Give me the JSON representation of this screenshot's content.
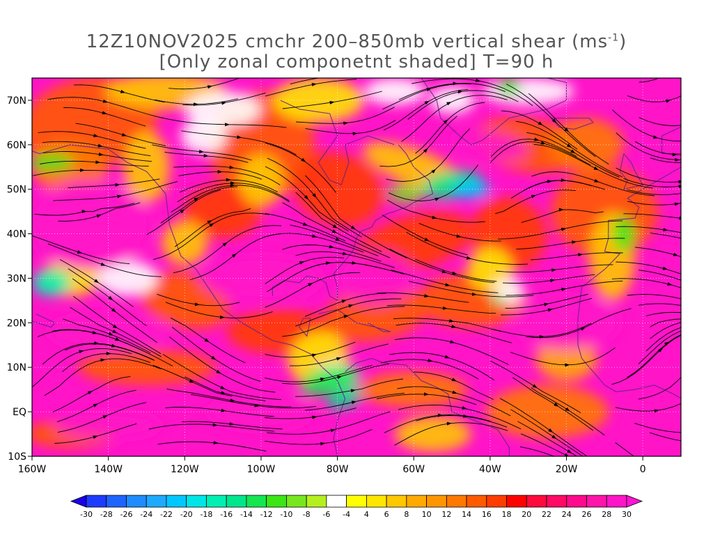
{
  "title": {
    "line1_prefix": "12Z10NOV2025 cmchr 200–850mb vertical shear (ms",
    "line1_sup": "-1",
    "line1_suffix": ")",
    "line2": "[Only zonal componetnt shaded] T=90 h"
  },
  "map": {
    "lon_range": [
      -160,
      10
    ],
    "lat_range": [
      -10,
      75
    ],
    "lon_ticks": [
      "160W",
      "140W",
      "120W",
      "100W",
      "80W",
      "60W",
      "40W",
      "20W",
      "0"
    ],
    "lat_ticks": [
      "10S",
      "EQ",
      "10N",
      "20N",
      "30N",
      "40N",
      "50N",
      "60N",
      "70N"
    ],
    "streamline_color": "#000000",
    "coast_color": "#6a1f8a"
  },
  "colorbar": {
    "labels": [
      "-30",
      "-28",
      "-26",
      "-24",
      "-22",
      "-20",
      "-18",
      "-16",
      "-14",
      "-12",
      "-10",
      "-8",
      "-6",
      "-4",
      "4",
      "6",
      "8",
      "10",
      "12",
      "14",
      "16",
      "18",
      "20",
      "22",
      "24",
      "26",
      "28",
      "30"
    ],
    "colors": [
      "#1a00e6",
      "#1e3cff",
      "#1e64ff",
      "#1e8cff",
      "#1eaaff",
      "#00c8ff",
      "#00e6e6",
      "#00f0b4",
      "#00e68c",
      "#14e650",
      "#3ce614",
      "#78e61e",
      "#b4f01e",
      "#ffffff",
      "#ffff00",
      "#ffe600",
      "#ffc800",
      "#ffaa00",
      "#ff9600",
      "#ff7800",
      "#ff5a00",
      "#ff3c00",
      "#ff0000",
      "#ff0a3c",
      "#ff0a64",
      "#ff0a8c",
      "#ff14aa",
      "#ff14c8",
      "#ff14d2"
    ]
  },
  "chart_data": {
    "type": "heatmap",
    "title": "12Z10NOV2025 cmchr 200–850mb vertical shear (ms-1) [Only zonal componetnt shaded] T=90 h",
    "x_range": [
      -160,
      10
    ],
    "y_range": [
      -10,
      75
    ],
    "colorbar_min": -30,
    "colorbar_max": 30
  }
}
